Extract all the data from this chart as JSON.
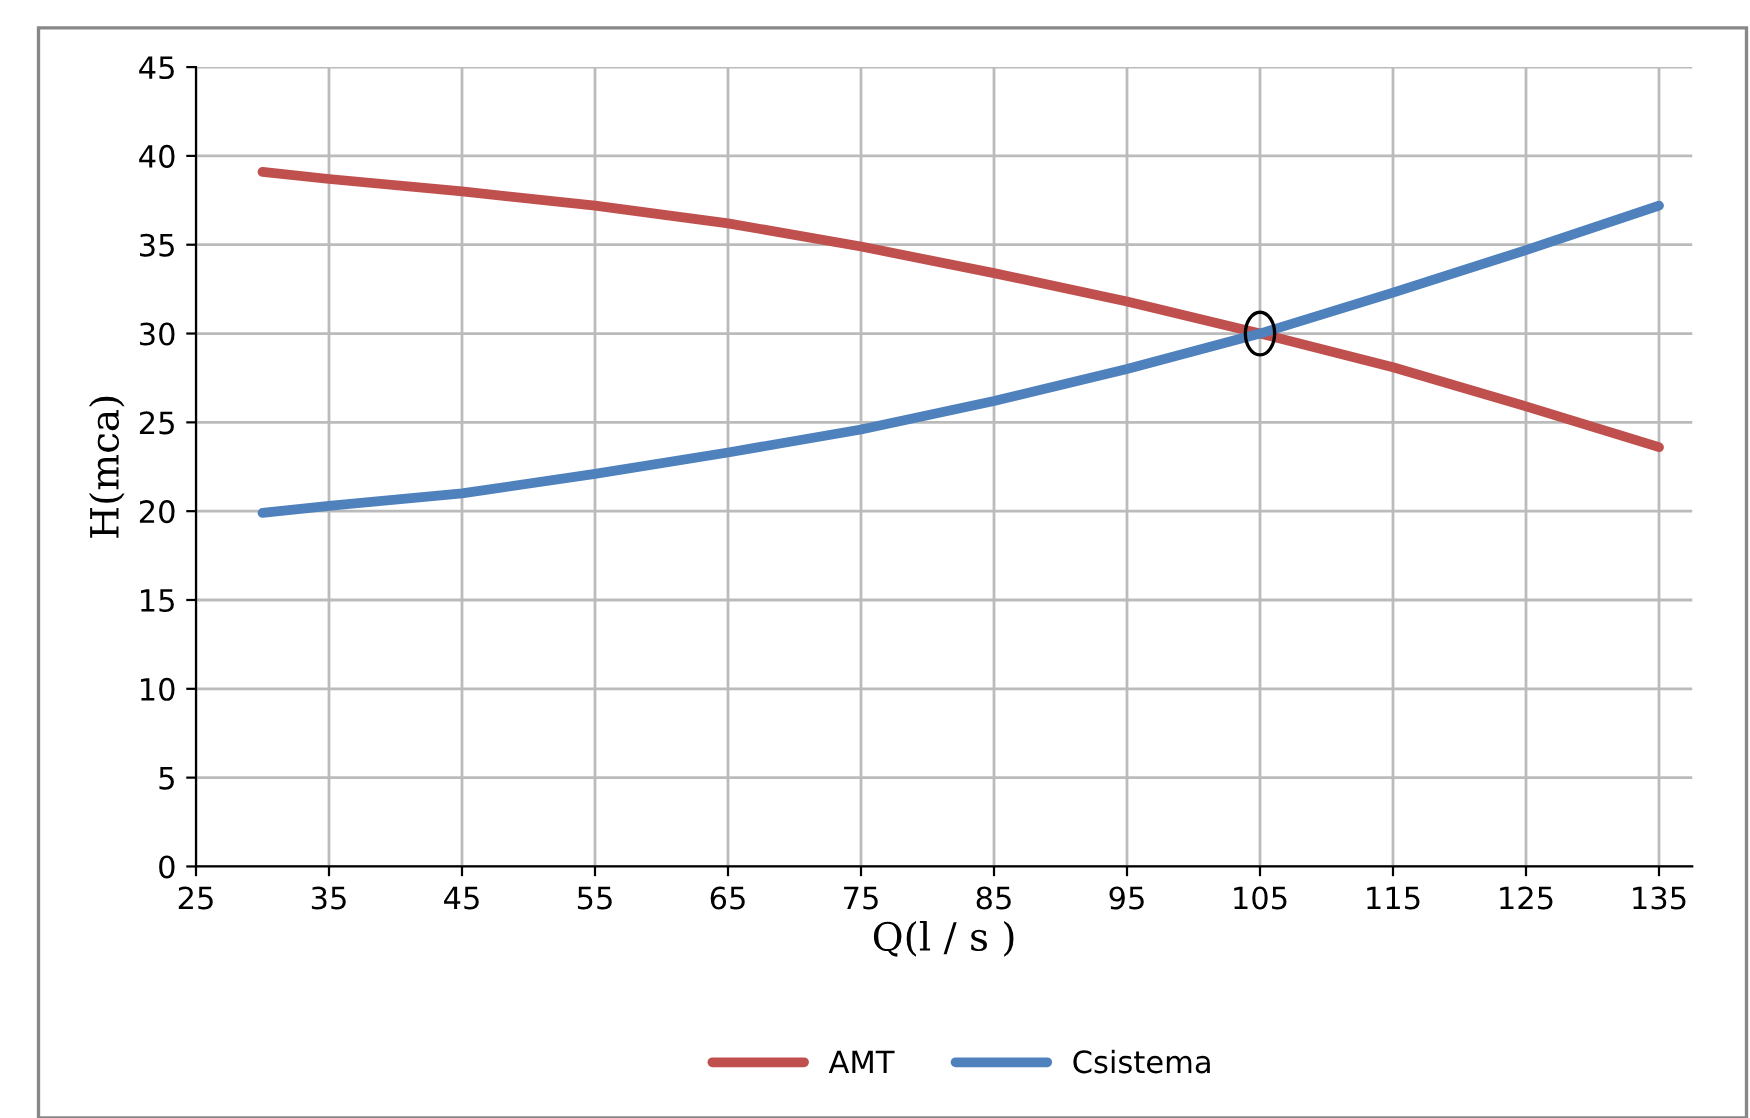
{
  "chart_data": {
    "type": "line",
    "xlabel": "Q(l / s )",
    "ylabel": "H(mca)",
    "x": [
      30,
      35,
      45,
      55,
      65,
      75,
      85,
      95,
      105,
      115,
      125,
      135
    ],
    "series": [
      {
        "name": "AMT",
        "color": "#c0504d",
        "values": [
          39.1,
          38.7,
          38.0,
          37.2,
          36.2,
          34.9,
          33.4,
          31.8,
          30.0,
          28.1,
          25.9,
          23.6
        ]
      },
      {
        "name": "Csistema",
        "color": "#4f81bd",
        "values": [
          19.9,
          20.3,
          21.0,
          22.1,
          23.3,
          24.6,
          26.2,
          28.0,
          30.0,
          32.3,
          34.7,
          37.2
        ]
      }
    ],
    "xlim": [
      25,
      137.5
    ],
    "xticks": [
      25,
      35,
      45,
      55,
      65,
      75,
      85,
      95,
      105,
      115,
      125,
      135
    ],
    "ylim": [
      0,
      45
    ],
    "yticks": [
      0,
      5,
      10,
      15,
      20,
      25,
      30,
      35,
      40,
      45
    ],
    "grid": true,
    "legend": "bottom",
    "marker": "none",
    "line_style": "solid"
  }
}
